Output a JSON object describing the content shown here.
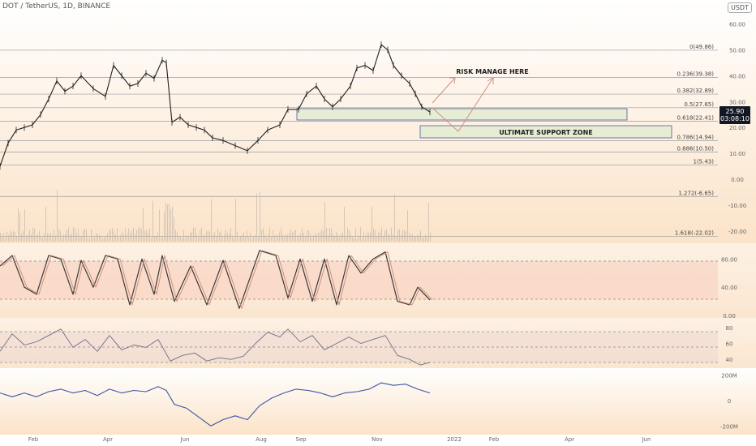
{
  "header": {
    "title": "DOT / TetherUS, 1D, BINANCE",
    "currency": "USDT",
    "last_price": "25.90",
    "countdown": "03:08:10"
  },
  "colors": {
    "background_top": "#ffffff",
    "background_warm": "#fbe3c8",
    "price_line": "#1f1f1f",
    "fib_line": "#9a9ba0",
    "zone_fill": "#e7edd4",
    "zone_border": "#4a5a94",
    "arrow": "#d08f82",
    "stoch_band": "#f7cdbd",
    "rsi_band": "#efd9d2",
    "obv_line": "#3d55a6"
  },
  "annotations": {
    "risk_manage": "RISK MANAGE HERE",
    "support_zone": "ULTIMATE SUPPORT ZONE"
  },
  "chart_data": [
    {
      "type": "line",
      "title": "DOT / TetherUS, 1D, BINANCE",
      "y_axis_labels": [
        "60.00",
        "50.00",
        "40.00",
        "30.00",
        "20.00",
        "10.00",
        "0.00",
        "-10.00",
        "-20.00"
      ],
      "y_range": [
        -26,
        63
      ],
      "x_axis_labels": [
        "Feb",
        "Apr",
        "Jun",
        "Aug",
        "Sep",
        "Nov",
        "2022",
        "Feb",
        "Apr",
        "Jun"
      ],
      "fib_levels": [
        {
          "label": "0(49.86)",
          "value": 49.86
        },
        {
          "label": "0.236(39.38)",
          "value": 39.38
        },
        {
          "label": "0.382(32.89)",
          "value": 32.89
        },
        {
          "label": "0.5(27.65)",
          "value": 27.65
        },
        {
          "label": "0.618(22.41)",
          "value": 22.41
        },
        {
          "label": "0.786(14.94)",
          "value": 14.94
        },
        {
          "label": "0.886(10.50)",
          "value": 10.5
        },
        {
          "label": "1(5.43)",
          "value": 5.43
        },
        {
          "label": "1.272(-6.65)",
          "value": -6.65
        },
        {
          "label": "1.618(-22.02)",
          "value": -22.02
        }
      ],
      "price_series_approx": [
        {
          "x": 0,
          "y": 5
        },
        {
          "x": 10,
          "y": 14
        },
        {
          "x": 20,
          "y": 19
        },
        {
          "x": 30,
          "y": 20
        },
        {
          "x": 40,
          "y": 21
        },
        {
          "x": 50,
          "y": 25
        },
        {
          "x": 60,
          "y": 31
        },
        {
          "x": 70,
          "y": 38
        },
        {
          "x": 80,
          "y": 34
        },
        {
          "x": 90,
          "y": 36
        },
        {
          "x": 100,
          "y": 40
        },
        {
          "x": 115,
          "y": 35
        },
        {
          "x": 130,
          "y": 32
        },
        {
          "x": 140,
          "y": 44
        },
        {
          "x": 150,
          "y": 40
        },
        {
          "x": 160,
          "y": 36
        },
        {
          "x": 170,
          "y": 37
        },
        {
          "x": 180,
          "y": 41
        },
        {
          "x": 190,
          "y": 39
        },
        {
          "x": 200,
          "y": 46
        },
        {
          "x": 205,
          "y": 45
        },
        {
          "x": 212,
          "y": 22
        },
        {
          "x": 222,
          "y": 24
        },
        {
          "x": 232,
          "y": 21
        },
        {
          "x": 242,
          "y": 20
        },
        {
          "x": 252,
          "y": 19
        },
        {
          "x": 262,
          "y": 16
        },
        {
          "x": 275,
          "y": 15
        },
        {
          "x": 290,
          "y": 13
        },
        {
          "x": 305,
          "y": 11
        },
        {
          "x": 318,
          "y": 15
        },
        {
          "x": 330,
          "y": 19
        },
        {
          "x": 345,
          "y": 21
        },
        {
          "x": 355,
          "y": 27
        },
        {
          "x": 368,
          "y": 27
        },
        {
          "x": 378,
          "y": 33
        },
        {
          "x": 390,
          "y": 36
        },
        {
          "x": 400,
          "y": 31
        },
        {
          "x": 410,
          "y": 28
        },
        {
          "x": 420,
          "y": 31
        },
        {
          "x": 432,
          "y": 36
        },
        {
          "x": 440,
          "y": 43
        },
        {
          "x": 450,
          "y": 44
        },
        {
          "x": 460,
          "y": 42
        },
        {
          "x": 470,
          "y": 52
        },
        {
          "x": 478,
          "y": 50
        },
        {
          "x": 485,
          "y": 44
        },
        {
          "x": 495,
          "y": 40
        },
        {
          "x": 505,
          "y": 37
        },
        {
          "x": 512,
          "y": 33
        },
        {
          "x": 520,
          "y": 28
        },
        {
          "x": 530,
          "y": 26
        }
      ],
      "annotations": [
        "RISK MANAGE HERE",
        "ULTIMATE SUPPORT ZONE"
      ]
    },
    {
      "type": "line",
      "y_axis_labels": [
        "80.00",
        "40.00",
        "0.00"
      ],
      "y_range": [
        0,
        100
      ],
      "bands": [
        20,
        80
      ],
      "k_series_approx": [
        {
          "x": 0,
          "y": 70
        },
        {
          "x": 15,
          "y": 85
        },
        {
          "x": 30,
          "y": 40
        },
        {
          "x": 45,
          "y": 30
        },
        {
          "x": 60,
          "y": 85
        },
        {
          "x": 75,
          "y": 80
        },
        {
          "x": 90,
          "y": 30
        },
        {
          "x": 100,
          "y": 78
        },
        {
          "x": 115,
          "y": 40
        },
        {
          "x": 130,
          "y": 85
        },
        {
          "x": 145,
          "y": 80
        },
        {
          "x": 160,
          "y": 15
        },
        {
          "x": 175,
          "y": 80
        },
        {
          "x": 190,
          "y": 30
        },
        {
          "x": 200,
          "y": 85
        },
        {
          "x": 215,
          "y": 20
        },
        {
          "x": 235,
          "y": 70
        },
        {
          "x": 255,
          "y": 15
        },
        {
          "x": 275,
          "y": 78
        },
        {
          "x": 295,
          "y": 10
        },
        {
          "x": 320,
          "y": 92
        },
        {
          "x": 340,
          "y": 85
        },
        {
          "x": 355,
          "y": 25
        },
        {
          "x": 370,
          "y": 80
        },
        {
          "x": 385,
          "y": 20
        },
        {
          "x": 400,
          "y": 80
        },
        {
          "x": 415,
          "y": 15
        },
        {
          "x": 430,
          "y": 85
        },
        {
          "x": 445,
          "y": 60
        },
        {
          "x": 460,
          "y": 80
        },
        {
          "x": 475,
          "y": 90
        },
        {
          "x": 490,
          "y": 20
        },
        {
          "x": 505,
          "y": 15
        },
        {
          "x": 515,
          "y": 40
        },
        {
          "x": 530,
          "y": 22
        }
      ]
    },
    {
      "type": "line",
      "y_axis_labels": [
        "80",
        "60",
        "40"
      ],
      "y_range": [
        28,
        92
      ],
      "bands": [
        30,
        70
      ],
      "rsi_series_approx": [
        {
          "x": 0,
          "y": 50
        },
        {
          "x": 15,
          "y": 72
        },
        {
          "x": 30,
          "y": 58
        },
        {
          "x": 45,
          "y": 62
        },
        {
          "x": 60,
          "y": 70
        },
        {
          "x": 75,
          "y": 78
        },
        {
          "x": 90,
          "y": 55
        },
        {
          "x": 105,
          "y": 65
        },
        {
          "x": 120,
          "y": 50
        },
        {
          "x": 135,
          "y": 70
        },
        {
          "x": 150,
          "y": 52
        },
        {
          "x": 165,
          "y": 58
        },
        {
          "x": 180,
          "y": 55
        },
        {
          "x": 195,
          "y": 65
        },
        {
          "x": 210,
          "y": 38
        },
        {
          "x": 225,
          "y": 45
        },
        {
          "x": 240,
          "y": 48
        },
        {
          "x": 255,
          "y": 38
        },
        {
          "x": 270,
          "y": 42
        },
        {
          "x": 285,
          "y": 40
        },
        {
          "x": 300,
          "y": 44
        },
        {
          "x": 315,
          "y": 60
        },
        {
          "x": 330,
          "y": 74
        },
        {
          "x": 345,
          "y": 68
        },
        {
          "x": 355,
          "y": 78
        },
        {
          "x": 370,
          "y": 62
        },
        {
          "x": 385,
          "y": 70
        },
        {
          "x": 400,
          "y": 52
        },
        {
          "x": 415,
          "y": 60
        },
        {
          "x": 430,
          "y": 68
        },
        {
          "x": 445,
          "y": 60
        },
        {
          "x": 460,
          "y": 65
        },
        {
          "x": 475,
          "y": 70
        },
        {
          "x": 490,
          "y": 45
        },
        {
          "x": 505,
          "y": 40
        },
        {
          "x": 518,
          "y": 33
        },
        {
          "x": 530,
          "y": 36
        }
      ]
    },
    {
      "type": "line",
      "y_axis_labels": [
        "200M",
        "0",
        "-200M"
      ],
      "y_range": [
        -230,
        230
      ],
      "obv_series_approx": [
        {
          "x": 0,
          "y": 60
        },
        {
          "x": 15,
          "y": 30
        },
        {
          "x": 30,
          "y": 60
        },
        {
          "x": 45,
          "y": 30
        },
        {
          "x": 60,
          "y": 70
        },
        {
          "x": 75,
          "y": 90
        },
        {
          "x": 90,
          "y": 60
        },
        {
          "x": 105,
          "y": 80
        },
        {
          "x": 120,
          "y": 40
        },
        {
          "x": 135,
          "y": 90
        },
        {
          "x": 150,
          "y": 60
        },
        {
          "x": 165,
          "y": 80
        },
        {
          "x": 180,
          "y": 70
        },
        {
          "x": 195,
          "y": 110
        },
        {
          "x": 205,
          "y": 80
        },
        {
          "x": 215,
          "y": -30
        },
        {
          "x": 230,
          "y": -60
        },
        {
          "x": 245,
          "y": -130
        },
        {
          "x": 260,
          "y": -200
        },
        {
          "x": 275,
          "y": -150
        },
        {
          "x": 290,
          "y": -120
        },
        {
          "x": 305,
          "y": -150
        },
        {
          "x": 320,
          "y": -40
        },
        {
          "x": 335,
          "y": 20
        },
        {
          "x": 350,
          "y": 60
        },
        {
          "x": 365,
          "y": 90
        },
        {
          "x": 380,
          "y": 80
        },
        {
          "x": 395,
          "y": 60
        },
        {
          "x": 410,
          "y": 30
        },
        {
          "x": 425,
          "y": 60
        },
        {
          "x": 440,
          "y": 70
        },
        {
          "x": 455,
          "y": 90
        },
        {
          "x": 470,
          "y": 140
        },
        {
          "x": 485,
          "y": 120
        },
        {
          "x": 500,
          "y": 130
        },
        {
          "x": 515,
          "y": 90
        },
        {
          "x": 530,
          "y": 60
        }
      ]
    }
  ]
}
